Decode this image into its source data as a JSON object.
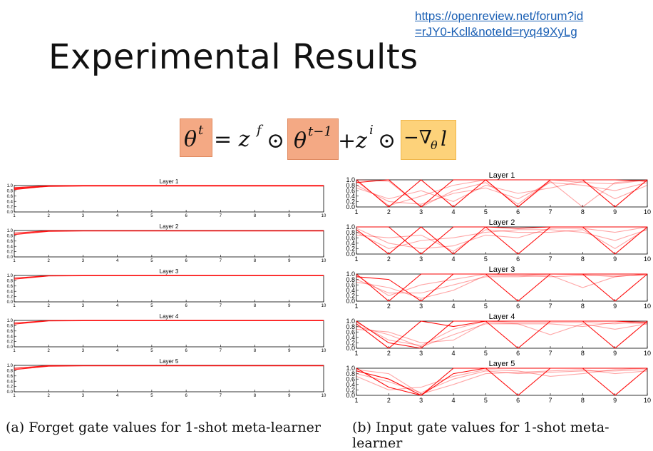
{
  "slide": {
    "title": "Experimental Results",
    "link_line1": "https://openreview.net/forum?id",
    "link_line2": "=rJY0-Kcll&noteId=ryq49XyLg",
    "formula": {
      "theta_t": "θ",
      "sup_t": "t",
      "eq_zf": "= z",
      "sup_f": "f",
      "odot": "⊙",
      "theta_prev": "θ",
      "sup_t1": "t−1",
      "plus_zi": "+z",
      "sup_i": "i",
      "grad": "−∇",
      "sub_theta": "θ",
      "loss": "l"
    },
    "caption_a": "(a) Forget gate values for 1-shot meta-learner",
    "caption_b": "(b) Input gate values for 1-shot meta-learner",
    "colors": {
      "line": "#ff0000",
      "highlight_orange": "#f4a984",
      "highlight_yellow": "#fdd27a",
      "link": "#1a5fb4"
    }
  },
  "chart_data": [
    {
      "type": "line",
      "panel": "a",
      "title": "Layer 1",
      "x": [
        1,
        2,
        3,
        4,
        5,
        6,
        7,
        8,
        9,
        10
      ],
      "ylim": [
        0,
        1
      ],
      "yticks": [
        "0.0",
        "0.2",
        "0.4",
        "0.6",
        "0.8",
        "1.0"
      ],
      "series": [
        {
          "values": [
            0.85,
            0.98,
            0.99,
            0.99,
            0.99,
            0.99,
            0.99,
            0.99,
            0.99,
            0.99
          ]
        },
        {
          "values": [
            0.88,
            0.97,
            0.98,
            0.98,
            0.98,
            0.98,
            0.98,
            0.98,
            0.98,
            0.98
          ]
        },
        {
          "values": [
            0.92,
            0.99,
            1.0,
            1.0,
            1.0,
            1.0,
            1.0,
            1.0,
            1.0,
            1.0
          ]
        }
      ]
    },
    {
      "type": "line",
      "panel": "a",
      "title": "Layer 2",
      "x": [
        1,
        2,
        3,
        4,
        5,
        6,
        7,
        8,
        9,
        10
      ],
      "ylim": [
        0,
        1
      ],
      "yticks": [
        "0.0",
        "0.2",
        "0.4",
        "0.6",
        "0.8",
        "1.0"
      ],
      "series": [
        {
          "values": [
            0.85,
            0.97,
            0.98,
            0.98,
            0.98,
            0.98,
            0.98,
            0.98,
            0.98,
            0.98
          ]
        },
        {
          "values": [
            0.9,
            0.99,
            0.99,
            0.99,
            0.99,
            0.99,
            0.99,
            0.99,
            0.99,
            0.99
          ]
        }
      ]
    },
    {
      "type": "line",
      "panel": "a",
      "title": "Layer 3",
      "x": [
        1,
        2,
        3,
        4,
        5,
        6,
        7,
        8,
        9,
        10
      ],
      "ylim": [
        0,
        1
      ],
      "yticks": [
        "0.0",
        "0.2",
        "0.4",
        "0.6",
        "0.8",
        "1.0"
      ],
      "series": [
        {
          "values": [
            0.86,
            0.98,
            0.99,
            0.99,
            0.99,
            0.99,
            0.99,
            0.99,
            0.99,
            0.99
          ]
        },
        {
          "values": [
            0.9,
            0.99,
            1.0,
            1.0,
            1.0,
            1.0,
            1.0,
            1.0,
            1.0,
            1.0
          ]
        }
      ]
    },
    {
      "type": "line",
      "panel": "a",
      "title": "Layer 4",
      "x": [
        1,
        2,
        3,
        4,
        5,
        6,
        7,
        8,
        9,
        10
      ],
      "ylim": [
        0,
        1
      ],
      "yticks": [
        "0.0",
        "0.2",
        "0.4",
        "0.6",
        "0.8",
        "1.0"
      ],
      "series": [
        {
          "values": [
            0.86,
            0.98,
            0.99,
            0.99,
            0.99,
            0.99,
            0.99,
            0.99,
            0.99,
            0.99
          ]
        },
        {
          "values": [
            0.9,
            0.99,
            1.0,
            1.0,
            1.0,
            1.0,
            1.0,
            1.0,
            1.0,
            1.0
          ]
        }
      ]
    },
    {
      "type": "line",
      "panel": "a",
      "title": "Layer 5",
      "x": [
        1,
        2,
        3,
        4,
        5,
        6,
        7,
        8,
        9,
        10
      ],
      "ylim": [
        0,
        1
      ],
      "yticks": [
        "0.0",
        "0.2",
        "0.4",
        "0.6",
        "0.8",
        "1.0"
      ],
      "series": [
        {
          "values": [
            0.84,
            0.97,
            0.98,
            0.98,
            0.98,
            0.98,
            0.98,
            0.98,
            0.98,
            0.98
          ]
        },
        {
          "values": [
            0.89,
            0.99,
            0.99,
            0.99,
            0.99,
            0.99,
            0.99,
            0.99,
            0.99,
            0.99
          ]
        }
      ]
    },
    {
      "type": "line",
      "panel": "b",
      "title": "Layer 1",
      "x": [
        1,
        2,
        3,
        4,
        5,
        6,
        7,
        8,
        9,
        10
      ],
      "ylim": [
        0,
        1
      ],
      "yticks": [
        "0.0",
        "0.2",
        "0.4",
        "0.6",
        "0.8",
        "1.0"
      ],
      "series": [
        {
          "values": [
            1.0,
            0.0,
            1.0,
            0.0,
            1.0,
            0.0,
            1.0,
            1.0,
            0.0,
            1.0
          ]
        },
        {
          "values": [
            0.9,
            1.0,
            0.0,
            1.0,
            1.0,
            1.0,
            1.0,
            1.0,
            1.0,
            0.95
          ]
        },
        {
          "values": [
            0.95,
            0.05,
            0.4,
            0.8,
            1.0,
            0.0,
            0.95,
            0.0,
            0.9,
            1.0
          ]
        },
        {
          "values": [
            0.8,
            0.2,
            0.1,
            0.5,
            0.7,
            0.3,
            0.9,
            0.8,
            0.6,
            0.9
          ]
        },
        {
          "values": [
            1.0,
            0.95,
            0.0,
            0.6,
            0.9,
            0.1,
            1.0,
            0.9,
            0.85,
            1.0
          ]
        },
        {
          "values": [
            0.7,
            0.3,
            0.6,
            0.2,
            0.8,
            0.5,
            0.7,
            0.95,
            0.3,
            0.8
          ]
        }
      ]
    },
    {
      "type": "line",
      "panel": "b",
      "title": "Layer 2",
      "x": [
        1,
        2,
        3,
        4,
        5,
        6,
        7,
        8,
        9,
        10
      ],
      "ylim": [
        0,
        1
      ],
      "yticks": [
        "0.0",
        "0.2",
        "0.4",
        "0.6",
        "0.8",
        "1.0"
      ],
      "series": [
        {
          "values": [
            1.0,
            1.0,
            0.0,
            1.0,
            1.0,
            0.0,
            1.0,
            1.0,
            0.0,
            1.0
          ]
        },
        {
          "values": [
            0.9,
            0.0,
            1.0,
            0.0,
            1.0,
            0.95,
            1.0,
            1.0,
            1.0,
            1.0
          ]
        },
        {
          "values": [
            0.8,
            0.2,
            0.5,
            0.6,
            0.8,
            0.9,
            0.9,
            0.8,
            0.5,
            0.9
          ]
        },
        {
          "values": [
            0.95,
            0.4,
            0.2,
            0.3,
            0.7,
            0.6,
            0.95,
            0.95,
            0.8,
            1.0
          ]
        },
        {
          "values": [
            0.7,
            0.6,
            0.7,
            0.1,
            0.9,
            0.8,
            0.8,
            0.9,
            0.2,
            0.95
          ]
        }
      ]
    },
    {
      "type": "line",
      "panel": "b",
      "title": "Layer 3",
      "x": [
        1,
        2,
        3,
        4,
        5,
        6,
        7,
        8,
        9,
        10
      ],
      "ylim": [
        0,
        1
      ],
      "yticks": [
        "0.0",
        "0.2",
        "0.4",
        "0.6",
        "0.8",
        "1.0"
      ],
      "series": [
        {
          "values": [
            1.0,
            0.0,
            1.0,
            1.0,
            1.0,
            0.0,
            1.0,
            1.0,
            0.0,
            1.0
          ]
        },
        {
          "values": [
            0.9,
            0.8,
            0.0,
            1.0,
            1.0,
            1.0,
            1.0,
            1.0,
            1.0,
            1.0
          ]
        },
        {
          "values": [
            0.8,
            0.3,
            0.3,
            0.6,
            0.9,
            0.9,
            0.95,
            0.5,
            0.9,
            1.0
          ]
        },
        {
          "values": [
            0.7,
            0.5,
            0.1,
            0.4,
            0.95,
            0.95,
            0.9,
            0.95,
            0.95,
            0.95
          ]
        },
        {
          "values": [
            0.95,
            0.2,
            0.6,
            0.8,
            1.0,
            0.95,
            1.0,
            0.98,
            0.9,
            1.0
          ]
        }
      ]
    },
    {
      "type": "line",
      "panel": "b",
      "title": "Layer 4",
      "x": [
        1,
        2,
        3,
        4,
        5,
        6,
        7,
        8,
        9,
        10
      ],
      "ylim": [
        0,
        1
      ],
      "yticks": [
        "0.0",
        "0.2",
        "0.4",
        "0.6",
        "0.8",
        "1.0"
      ],
      "series": [
        {
          "values": [
            1.0,
            0.2,
            0.0,
            1.0,
            1.0,
            0.0,
            1.0,
            1.0,
            0.0,
            1.0
          ]
        },
        {
          "values": [
            0.9,
            0.0,
            1.0,
            0.8,
            1.0,
            1.0,
            1.0,
            1.0,
            1.0,
            0.95
          ]
        },
        {
          "values": [
            0.8,
            0.5,
            0.05,
            0.5,
            0.9,
            0.9,
            0.5,
            0.9,
            0.7,
            0.9
          ]
        },
        {
          "values": [
            0.95,
            0.3,
            0.1,
            0.7,
            1.0,
            0.95,
            0.95,
            0.95,
            0.9,
            1.0
          ]
        },
        {
          "values": [
            0.7,
            0.6,
            0.2,
            0.3,
            0.95,
            0.9,
            0.9,
            0.8,
            0.95,
            0.9
          ]
        }
      ]
    },
    {
      "type": "line",
      "panel": "b",
      "title": "Layer 5",
      "x": [
        1,
        2,
        3,
        4,
        5,
        6,
        7,
        8,
        9,
        10
      ],
      "ylim": [
        0,
        1
      ],
      "yticks": [
        "0.0",
        "0.2",
        "0.4",
        "0.6",
        "0.8",
        "1.0"
      ],
      "series": [
        {
          "values": [
            0.9,
            0.6,
            0.0,
            1.0,
            1.0,
            1.0,
            1.0,
            1.0,
            1.0,
            1.0
          ]
        },
        {
          "values": [
            1.0,
            0.3,
            0.0,
            0.8,
            1.0,
            0.0,
            1.0,
            1.0,
            0.0,
            1.0
          ]
        },
        {
          "values": [
            0.8,
            0.5,
            0.1,
            0.6,
            0.9,
            0.8,
            0.85,
            0.9,
            0.9,
            0.95
          ]
        },
        {
          "values": [
            0.7,
            0.2,
            0.3,
            0.7,
            0.95,
            0.9,
            0.7,
            0.8,
            0.95,
            1.0
          ]
        },
        {
          "values": [
            0.95,
            0.8,
            0.05,
            0.4,
            0.8,
            0.85,
            0.9,
            0.95,
            0.8,
            0.9
          ]
        }
      ]
    }
  ]
}
